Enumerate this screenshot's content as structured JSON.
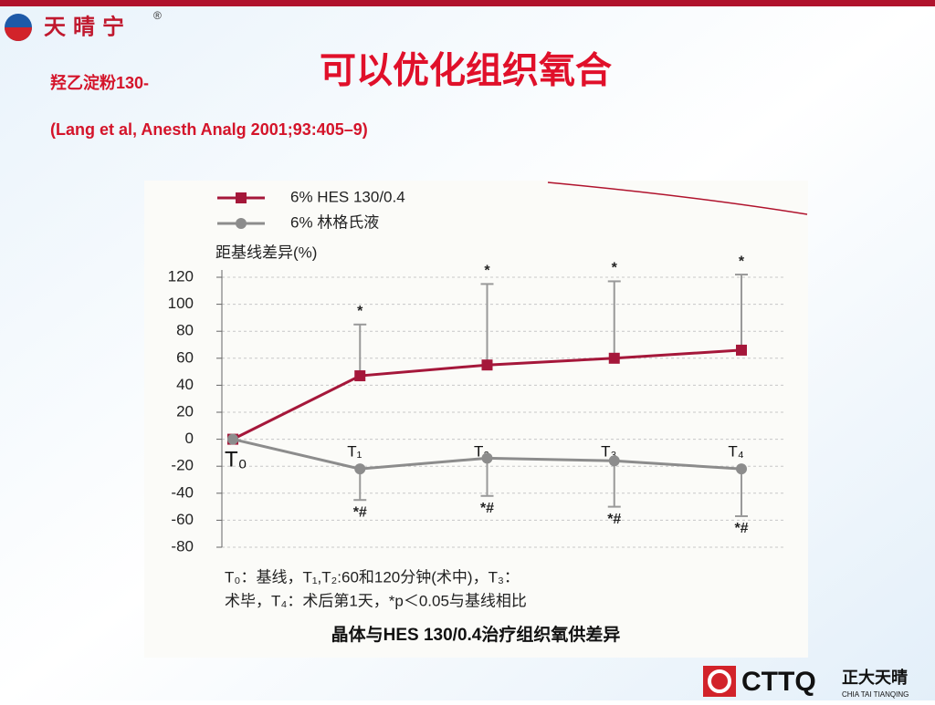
{
  "slide": {
    "logo": "天晴宁",
    "registered": "®",
    "subtitle": "羟乙淀粉130-",
    "title": "可以优化组织氧合",
    "citation": "(Lang et al, Anesth Analg 2001;93:405–9)",
    "brand": "CTTQ",
    "brand_cn": "正大天晴",
    "brand_en": "CHIA TAI TIANQING"
  },
  "chart_data": {
    "type": "line",
    "y_label": "距基线差异(%)",
    "categories": [
      "T₀",
      "T₁",
      "T₂",
      "T₃",
      "T₄"
    ],
    "series": [
      {
        "name": "6% HES 130/0.4",
        "color": "#a5173a",
        "values": [
          0,
          47,
          55,
          60,
          66
        ],
        "errors_upper": [
          null,
          38,
          60,
          57,
          56
        ],
        "markers": [
          null,
          "*",
          "*",
          "*",
          "*"
        ]
      },
      {
        "name": "6% 林格氏液",
        "color": "#8c8c8c",
        "values": [
          0,
          -22,
          -14,
          -16,
          -22
        ],
        "errors_lower": [
          null,
          23,
          28,
          34,
          35
        ],
        "markers": [
          null,
          "*#",
          "*#",
          "*#",
          "*#"
        ]
      }
    ],
    "ylim": [
      -80,
      120
    ],
    "yticks": [
      -80,
      -60,
      -40,
      -20,
      0,
      20,
      40,
      60,
      80,
      100,
      120
    ],
    "grid": true,
    "footnote": [
      "T₀：基线，T₁,T₂:60和120分钟(术中)，T₃：",
      "术毕，T₄：术后第1天，*p＜0.05与基线相比"
    ],
    "caption": "晶体与HES 130/0.4治疗组织氧供差异"
  }
}
